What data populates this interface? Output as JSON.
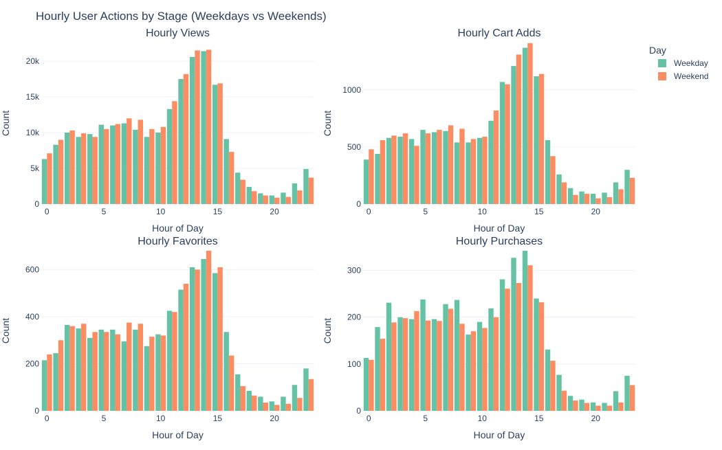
{
  "title": "Hourly User Actions by Stage (Weekdays vs Weekends)",
  "legend": {
    "title": "Day",
    "placement": "top-right",
    "entries": [
      {
        "name": "Weekday",
        "color": "#66c2a5"
      },
      {
        "name": "Weekend",
        "color": "#fc8d62"
      }
    ]
  },
  "chart_data": [
    {
      "type": "bar",
      "title": "Hourly Views",
      "xlabel": "Hour of Day",
      "ylabel": "Count",
      "xlim": [
        -0.5,
        23.5
      ],
      "ylim": [
        0,
        22600
      ],
      "yticks": [
        0,
        5000,
        10000,
        15000,
        20000
      ],
      "ytick_labels": [
        "0",
        "5k",
        "10k",
        "15k",
        "20k"
      ],
      "xticks": [
        0,
        5,
        10,
        15,
        20
      ],
      "grid": true,
      "x": [
        0,
        1,
        2,
        3,
        4,
        5,
        6,
        7,
        8,
        9,
        10,
        11,
        12,
        13,
        14,
        15,
        16,
        17,
        18,
        19,
        20,
        21,
        22,
        23
      ],
      "series": [
        {
          "name": "Weekday",
          "values": [
            6300,
            8300,
            10000,
            9400,
            9800,
            11100,
            11000,
            11300,
            10400,
            9400,
            10000,
            13300,
            17500,
            20600,
            21400,
            16700,
            9100,
            4400,
            2400,
            1500,
            1200,
            1600,
            2900,
            4900
          ]
        },
        {
          "name": "Weekend",
          "values": [
            7100,
            9000,
            10300,
            9900,
            9400,
            10500,
            11200,
            12000,
            11800,
            10500,
            10800,
            14400,
            18200,
            21500,
            21600,
            16900,
            7300,
            3400,
            1800,
            1200,
            900,
            1000,
            1900,
            3700
          ]
        }
      ]
    },
    {
      "type": "bar",
      "title": "Hourly Cart Adds",
      "xlabel": "Hour of Day",
      "ylabel": "Count",
      "xlim": [
        -0.5,
        23.5
      ],
      "ylim": [
        0,
        1415
      ],
      "yticks": [
        0,
        500,
        1000
      ],
      "ytick_labels": [
        "0",
        "500",
        "1000"
      ],
      "xticks": [
        0,
        5,
        10,
        15,
        20
      ],
      "grid": true,
      "x": [
        0,
        1,
        2,
        3,
        4,
        5,
        6,
        7,
        8,
        9,
        10,
        11,
        12,
        13,
        14,
        15,
        16,
        17,
        18,
        19,
        20,
        21,
        22,
        23
      ],
      "series": [
        {
          "name": "Weekday",
          "values": [
            390,
            440,
            580,
            590,
            570,
            650,
            630,
            640,
            540,
            540,
            580,
            730,
            1070,
            1210,
            1370,
            1120,
            560,
            260,
            140,
            110,
            90,
            100,
            190,
            300
          ]
        },
        {
          "name": "Weekend",
          "values": [
            480,
            560,
            600,
            620,
            510,
            620,
            650,
            690,
            660,
            570,
            590,
            820,
            1050,
            1310,
            1410,
            1140,
            420,
            190,
            80,
            90,
            50,
            60,
            130,
            230
          ]
        }
      ]
    },
    {
      "type": "bar",
      "title": "Hourly Favorites",
      "xlabel": "Hour of Day",
      "ylabel": "Count",
      "xlim": [
        -0.5,
        23.5
      ],
      "ylim": [
        0,
        680
      ],
      "yticks": [
        0,
        200,
        400,
        600
      ],
      "ytick_labels": [
        "0",
        "200",
        "400",
        "600"
      ],
      "xticks": [
        0,
        5,
        10,
        15,
        20
      ],
      "grid": true,
      "x": [
        0,
        1,
        2,
        3,
        4,
        5,
        6,
        7,
        8,
        9,
        10,
        11,
        12,
        13,
        14,
        15,
        16,
        17,
        18,
        19,
        20,
        21,
        22,
        23
      ],
      "series": [
        {
          "name": "Weekday",
          "values": [
            215,
            245,
            365,
            350,
            310,
            345,
            345,
            295,
            345,
            275,
            325,
            425,
            515,
            610,
            645,
            585,
            335,
            155,
            85,
            60,
            40,
            60,
            110,
            180
          ]
        },
        {
          "name": "Weekend",
          "values": [
            240,
            300,
            360,
            370,
            335,
            335,
            325,
            375,
            370,
            315,
            320,
            420,
            540,
            600,
            680,
            610,
            235,
            105,
            65,
            35,
            25,
            30,
            55,
            135
          ]
        }
      ]
    },
    {
      "type": "bar",
      "title": "Hourly Purchases",
      "xlabel": "Hour of Day",
      "ylabel": "Count",
      "xlim": [
        -0.5,
        23.5
      ],
      "ylim": [
        0,
        342
      ],
      "yticks": [
        0,
        100,
        200,
        300
      ],
      "ytick_labels": [
        "0",
        "100",
        "200",
        "300"
      ],
      "xticks": [
        0,
        5,
        10,
        15,
        20
      ],
      "grid": true,
      "x": [
        0,
        1,
        2,
        3,
        4,
        5,
        6,
        7,
        8,
        9,
        10,
        11,
        12,
        13,
        14,
        15,
        16,
        17,
        18,
        19,
        20,
        21,
        22,
        23
      ],
      "series": [
        {
          "name": "Weekday",
          "values": [
            113,
            179,
            231,
            200,
            196,
            238,
            196,
            228,
            237,
            163,
            190,
            219,
            281,
            327,
            342,
            240,
            131,
            77,
            32,
            24,
            18,
            17,
            42,
            75
          ]
        },
        {
          "name": "Weekend",
          "values": [
            109,
            154,
            189,
            198,
            213,
            193,
            192,
            218,
            186,
            170,
            177,
            200,
            261,
            273,
            311,
            232,
            107,
            43,
            22,
            17,
            11,
            11,
            18,
            55
          ]
        }
      ]
    }
  ]
}
